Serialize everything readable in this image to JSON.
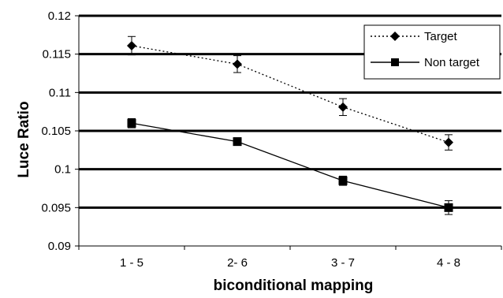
{
  "chart_data": {
    "type": "line",
    "title": "",
    "xlabel": "biconditional mapping",
    "ylabel": "Luce Ratio",
    "categories": [
      "1 - 5",
      "2- 6",
      "3 - 7",
      "4 - 8"
    ],
    "ylim": [
      0.09,
      0.12
    ],
    "yticks": [
      "0.09",
      "0.095",
      "0.1",
      "0.105",
      "0.11",
      "0.115",
      "0.12"
    ],
    "ytick_values": [
      0.09,
      0.095,
      0.1,
      0.105,
      0.11,
      0.115,
      0.12
    ],
    "grid": true,
    "legend_position": "top-right",
    "series": [
      {
        "name": "Target",
        "values": [
          0.1161,
          0.1137,
          0.1081,
          0.1035
        ],
        "errors": [
          0.0012,
          0.0011,
          0.0011,
          0.001
        ],
        "line_style": "dotted",
        "marker": "diamond",
        "color": "#000000"
      },
      {
        "name": "Non target",
        "values": [
          0.106,
          0.1036,
          0.0985,
          0.095
        ],
        "errors": [
          0.0006,
          0.0005,
          0.0006,
          0.0009
        ],
        "line_style": "solid",
        "marker": "square",
        "color": "#000000"
      }
    ]
  }
}
